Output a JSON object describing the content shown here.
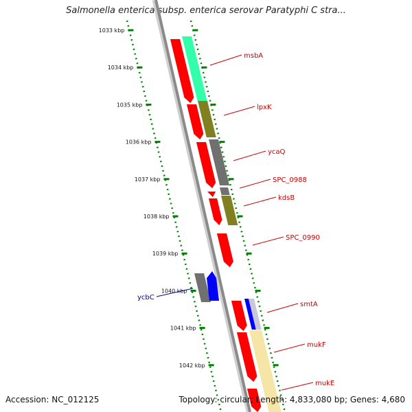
{
  "title": "Salmonella enterica subsp. enterica serovar Paratyphi C stra...",
  "footer": {
    "accession": "Accession: NC_012125",
    "summary": "Topology: circular; Length: 4,833,080 bp; Genes: 4,680"
  },
  "colors": {
    "backbone": "#8a8a8a",
    "ticks": "#008000",
    "cds_red": "#ff0000",
    "label_plus": "#cc0000",
    "label_minus": "#00008b",
    "green_gene": "#33ffaa",
    "olive_gene": "#808020",
    "grey_gene": "#707070",
    "blue_gene": "#0000ff",
    "yellow_gene": "#f5e6a8"
  },
  "scale_ticks": [
    {
      "label": "1033 kbp",
      "kbp": 1033
    },
    {
      "label": "1034 kbp",
      "kbp": 1034
    },
    {
      "label": "1035 kbp",
      "kbp": 1035
    },
    {
      "label": "1036 kbp",
      "kbp": 1036
    },
    {
      "label": "1037 kbp",
      "kbp": 1037
    },
    {
      "label": "1038 kbp",
      "kbp": 1038
    },
    {
      "label": "1039 kbp",
      "kbp": 1039
    },
    {
      "label": "1040 kbp",
      "kbp": 1040
    },
    {
      "label": "1041 kbp",
      "kbp": 1041
    },
    {
      "label": "1042 kbp",
      "kbp": 1042
    }
  ],
  "genes": [
    {
      "label": "msbA",
      "strand": "plus"
    },
    {
      "label": "lpxK",
      "strand": "plus"
    },
    {
      "label": "ycaQ",
      "strand": "plus"
    },
    {
      "label": "SPC_0988",
      "strand": "plus"
    },
    {
      "label": "kdsB",
      "strand": "plus"
    },
    {
      "label": "SPC_0990",
      "strand": "plus"
    },
    {
      "label": "ycbC",
      "strand": "minus"
    },
    {
      "label": "smtA",
      "strand": "plus"
    },
    {
      "label": "mukF",
      "strand": "plus"
    },
    {
      "label": "mukE",
      "strand": "plus"
    }
  ]
}
